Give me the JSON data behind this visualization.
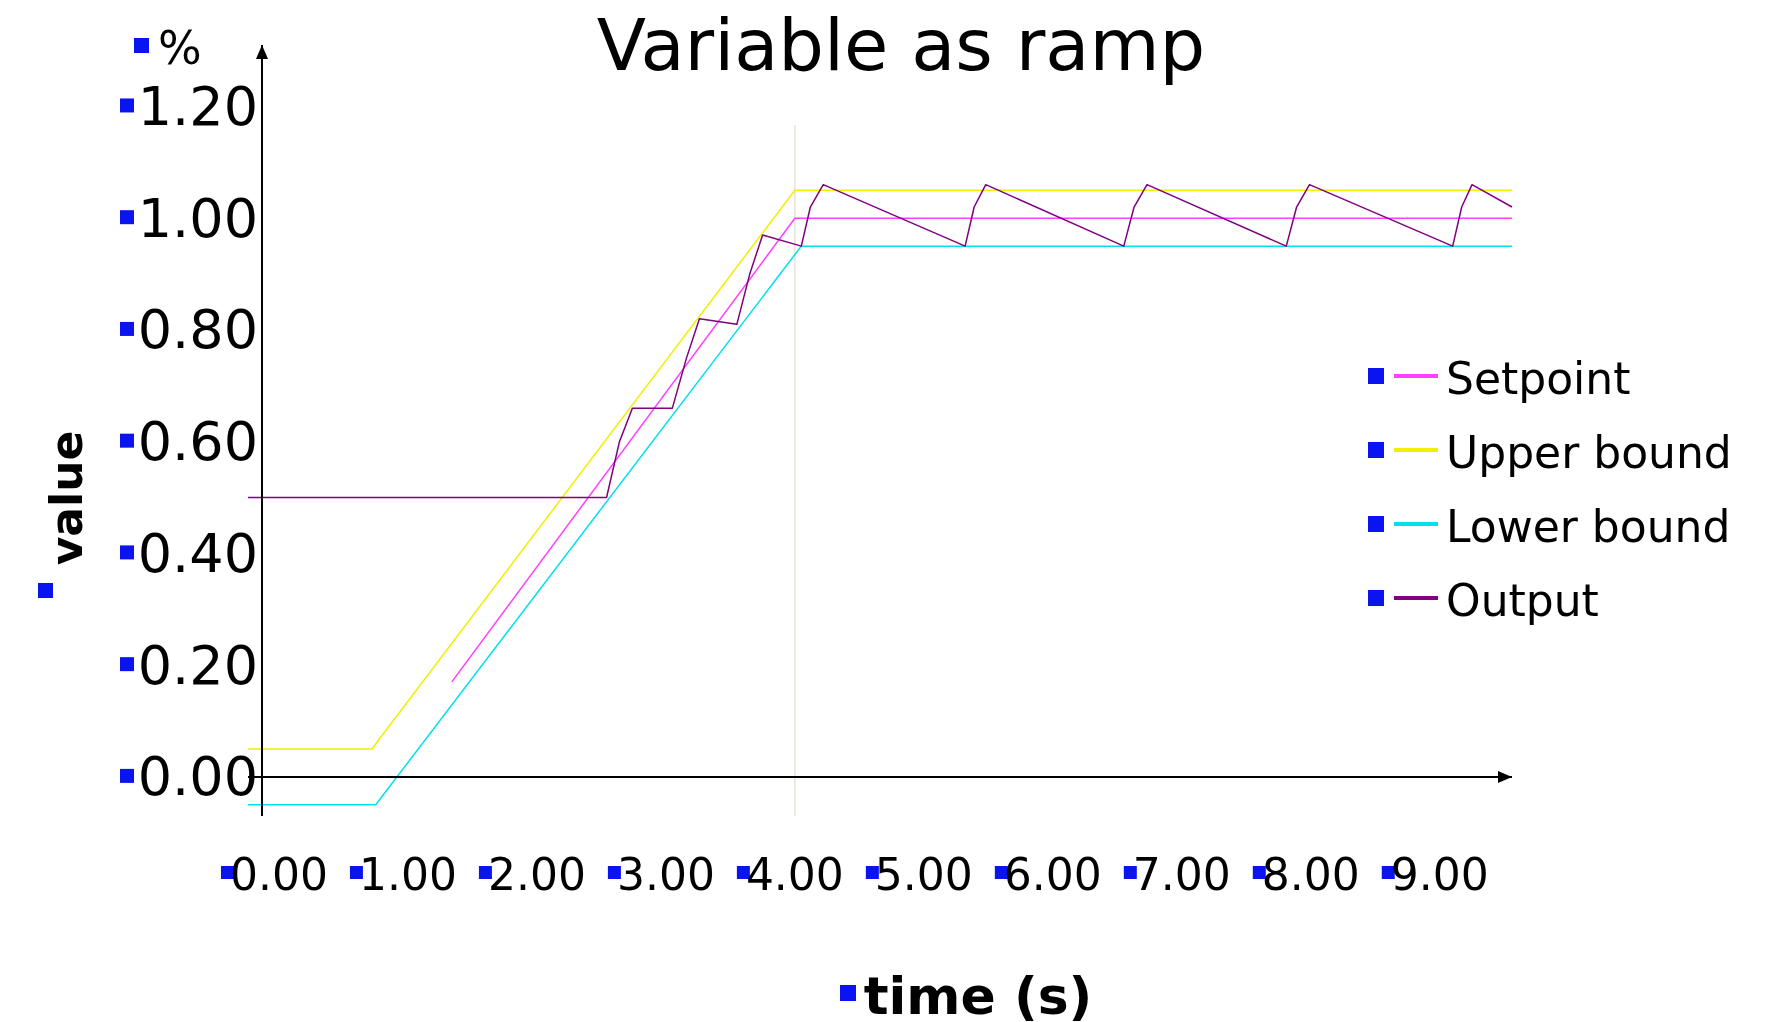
{
  "chart_data": {
    "type": "line",
    "title": "Variable as ramp",
    "xlabel": "time (s)",
    "ylabel": "value",
    "annotations": [
      "%"
    ],
    "xlim": [
      -0.24,
      9.56
    ],
    "ylim": [
      -0.07,
      1.31
    ],
    "xticks": [
      {
        "value": 0,
        "label": "0.00"
      },
      {
        "value": 1,
        "label": "1.00"
      },
      {
        "value": 2,
        "label": "2.00"
      },
      {
        "value": 3,
        "label": "3.00"
      },
      {
        "value": 4,
        "label": "4.00"
      },
      {
        "value": 5,
        "label": "5.00"
      },
      {
        "value": 6,
        "label": "6.00"
      },
      {
        "value": 7,
        "label": "7.00"
      },
      {
        "value": 8,
        "label": "8.00"
      },
      {
        "value": 9,
        "label": "9.00"
      }
    ],
    "yticks": [
      {
        "value": 0,
        "label": "0.00"
      },
      {
        "value": 0.2,
        "label": "0.20"
      },
      {
        "value": 0.4,
        "label": "0.40"
      },
      {
        "value": 0.6,
        "label": "0.60"
      },
      {
        "value": 0.8,
        "label": "0.80"
      },
      {
        "value": 1,
        "label": "1.00"
      },
      {
        "value": 1.2,
        "label": "1.20"
      }
    ],
    "grid": false,
    "legend": "right",
    "marker": "none",
    "line_style": "solid",
    "ref_lines": [
      {
        "axis": "x",
        "value": 4,
        "label": null,
        "color": "#e4e4d4"
      }
    ],
    "series": [
      {
        "name": "Setpoint",
        "color": "#ff40ff",
        "x": [
          1.34,
          4.0,
          9.56
        ],
        "values": [
          0.17,
          1.0,
          1.0
        ]
      },
      {
        "name": "Upper bound",
        "color": "#f0f000",
        "x": [
          -0.24,
          0.72,
          4.0,
          9.56
        ],
        "values": [
          0.05,
          0.05,
          1.05,
          1.05
        ]
      },
      {
        "name": "Lower bound",
        "color": "#00e0f0",
        "x": [
          -0.24,
          0.75,
          4.05,
          9.56
        ],
        "values": [
          -0.05,
          -0.05,
          0.95,
          0.95
        ]
      },
      {
        "name": "Output",
        "color": "#800080",
        "x": [
          -0.24,
          2.54,
          2.64,
          2.74,
          3.05,
          3.16,
          3.26,
          3.55,
          3.65,
          3.75,
          4.05,
          4.12,
          4.22,
          5.32,
          5.39,
          5.48,
          6.55,
          6.63,
          6.73,
          7.81,
          7.89,
          7.99,
          9.1,
          9.17,
          9.25,
          9.56
        ],
        "values": [
          0.5,
          0.5,
          0.6,
          0.66,
          0.66,
          0.75,
          0.82,
          0.81,
          0.9,
          0.97,
          0.95,
          1.02,
          1.06,
          0.95,
          1.02,
          1.06,
          0.95,
          1.02,
          1.06,
          0.95,
          1.02,
          1.06,
          0.95,
          1.02,
          1.06,
          1.02
        ]
      }
    ]
  }
}
